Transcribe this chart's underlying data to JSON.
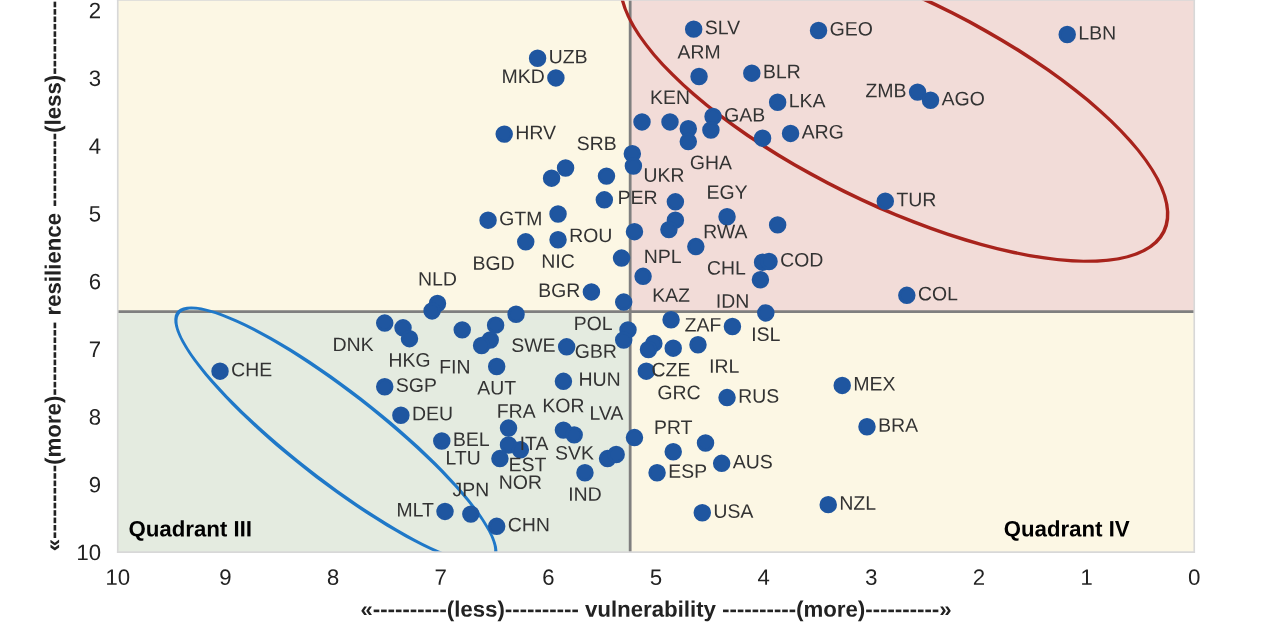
{
  "chart_data": {
    "type": "scatter",
    "xlabel": "«----------(less)---------- vulnerability ----------(more)----------»",
    "ylabel": "«----------(more)---------- resilience ----------(less)----------",
    "xlim": [
      10,
      0
    ],
    "xticks": [
      10,
      9,
      8,
      7,
      6,
      5,
      4,
      3,
      2,
      1,
      0
    ],
    "ylim": [
      10,
      1.85
    ],
    "yticks": [
      2,
      3,
      4,
      5,
      6,
      7,
      8,
      9,
      10
    ],
    "grid": false,
    "marker": "circle",
    "ref_lines": [
      {
        "axis": "x",
        "value": 5.24,
        "color": "#7f7f7f"
      },
      {
        "axis": "y",
        "value": 6.45,
        "color": "#7f7f7f"
      }
    ],
    "series": [
      {
        "color": "#1f56a0",
        "x": [
          6.1,
          5.93,
          6.41,
          5.84,
          5.97,
          5.46,
          5.48,
          6.56,
          5.91,
          5.91,
          6.21,
          5.32,
          5.6,
          5.2,
          5.13,
          4.87,
          5.22,
          5.21,
          4.65,
          3.49,
          1.18,
          4.6,
          4.11,
          2.57,
          2.45,
          3.87,
          4.47,
          3.75,
          4.01,
          4.49,
          4.7,
          4.7,
          4.82,
          4.82,
          4.88,
          4.34,
          4.63,
          3.87,
          4.01,
          3.95,
          4.03,
          5.12,
          5.3,
          2.67,
          3.98,
          4.86,
          5.26,
          4.29,
          5.3,
          5.02,
          5.07,
          4.84,
          4.61,
          5.09,
          5.83,
          4.34,
          3.27,
          3.04,
          5.2,
          5.86,
          5.76,
          4.39,
          4.54,
          4.84,
          4.99,
          4.57,
          3.4,
          5.45,
          5.37,
          5.66,
          2.87,
          7.03,
          7.08,
          7.52,
          7.35,
          7.29,
          6.8,
          6.3,
          6.49,
          6.54,
          6.62,
          6.48,
          5.86,
          9.05,
          7.52,
          7.37,
          6.99,
          6.37,
          6.37,
          6.26,
          6.45,
          6.96,
          6.72,
          6.48
        ],
        "values": [
          2.71,
          3.0,
          3.83,
          4.33,
          4.48,
          4.45,
          4.8,
          5.1,
          5.01,
          5.39,
          5.42,
          5.66,
          6.16,
          5.27,
          3.65,
          3.65,
          4.12,
          4.3,
          2.28,
          2.3,
          2.36,
          2.98,
          2.93,
          3.21,
          3.33,
          3.36,
          3.57,
          3.82,
          3.89,
          3.77,
          3.75,
          3.94,
          4.83,
          5.1,
          5.24,
          5.05,
          5.49,
          5.17,
          5.72,
          5.71,
          5.98,
          5.93,
          6.31,
          6.21,
          6.47,
          6.57,
          6.72,
          6.67,
          6.87,
          6.92,
          7.01,
          6.99,
          6.94,
          7.33,
          6.97,
          7.72,
          7.54,
          8.15,
          8.31,
          8.2,
          8.27,
          8.69,
          8.39,
          8.52,
          8.83,
          9.42,
          9.3,
          8.62,
          8.56,
          8.83,
          4.82,
          6.33,
          6.44,
          6.62,
          6.69,
          6.85,
          6.72,
          6.49,
          6.65,
          6.87,
          6.95,
          7.26,
          7.48,
          7.33,
          7.56,
          7.98,
          8.36,
          8.17,
          8.42,
          8.49,
          8.62,
          9.4,
          9.44,
          9.62
        ]
      }
    ],
    "annotations": [
      "Quadrant III",
      "Quadrant IV",
      {
        "text": "UZB",
        "x": 6.1,
        "y": 2.71
      },
      {
        "text": "MKD",
        "x": 5.93,
        "y": 3.0
      },
      {
        "text": "HRV",
        "x": 6.41,
        "y": 3.83
      },
      {
        "text": "SRB",
        "x": 5.84,
        "y": 4.33
      },
      {
        "text": "PER",
        "x": 5.46,
        "y": 4.45
      },
      {
        "text": "GTM",
        "x": 6.56,
        "y": 5.1
      },
      {
        "text": "ROU",
        "x": 5.91,
        "y": 5.01
      },
      {
        "text": "NIC",
        "x": 5.91,
        "y": 5.39
      },
      {
        "text": "BGD",
        "x": 6.21,
        "y": 5.42
      },
      {
        "text": "NPL",
        "x": 5.32,
        "y": 5.66
      },
      {
        "text": "BGR",
        "x": 5.6,
        "y": 6.16
      },
      {
        "text": "KEN",
        "x": 4.87,
        "y": 3.65
      },
      {
        "text": "UKR",
        "x": 5.22,
        "y": 4.12
      },
      {
        "text": "SLV",
        "x": 4.65,
        "y": 2.28
      },
      {
        "text": "GEO",
        "x": 3.49,
        "y": 2.3
      },
      {
        "text": "LBN",
        "x": 1.18,
        "y": 2.36
      },
      {
        "text": "ARM",
        "x": 4.6,
        "y": 2.98
      },
      {
        "text": "BLR",
        "x": 4.11,
        "y": 2.93
      },
      {
        "text": "ZMB",
        "x": 2.57,
        "y": 3.21
      },
      {
        "text": "AGO",
        "x": 2.45,
        "y": 3.33
      },
      {
        "text": "LKA",
        "x": 3.87,
        "y": 3.36
      },
      {
        "text": "GAB",
        "x": 4.47,
        "y": 3.57
      },
      {
        "text": "ARG",
        "x": 3.75,
        "y": 3.82
      },
      {
        "text": "GHA",
        "x": 4.49,
        "y": 3.77
      },
      {
        "text": "RWA",
        "x": 4.82,
        "y": 4.83
      },
      {
        "text": "TUR",
        "x": 2.87,
        "y": 4.82
      },
      {
        "text": "EGY",
        "x": 4.34,
        "y": 5.05
      },
      {
        "text": "CHL",
        "x": 4.63,
        "y": 5.49
      },
      {
        "text": "COD",
        "x": 3.95,
        "y": 5.71
      },
      {
        "text": "IDN",
        "x": 4.03,
        "y": 5.98
      },
      {
        "text": "POL",
        "x": 5.3,
        "y": 6.31
      },
      {
        "text": "COL",
        "x": 2.67,
        "y": 6.21
      },
      {
        "text": "ISL",
        "x": 3.98,
        "y": 6.47
      },
      {
        "text": "KAZ",
        "x": 4.86,
        "y": 6.57
      },
      {
        "text": "GBR",
        "x": 5.26,
        "y": 6.72
      },
      {
        "text": "ZAF",
        "x": 4.29,
        "y": 6.67
      },
      {
        "text": "CZE",
        "x": 5.3,
        "y": 6.87
      },
      {
        "text": "IRL",
        "x": 4.61,
        "y": 6.94
      },
      {
        "text": "HUN",
        "x": 5.07,
        "y": 7.01
      },
      {
        "text": "GRC",
        "x": 5.09,
        "y": 7.33
      },
      {
        "text": "SWE",
        "x": 5.83,
        "y": 6.97
      },
      {
        "text": "RUS",
        "x": 4.34,
        "y": 7.72
      },
      {
        "text": "MEX",
        "x": 3.27,
        "y": 7.54
      },
      {
        "text": "BRA",
        "x": 3.04,
        "y": 8.15
      },
      {
        "text": "LVA",
        "x": 5.2,
        "y": 8.31
      },
      {
        "text": "KOR",
        "x": 5.86,
        "y": 8.2
      },
      {
        "text": "EST",
        "x": 5.76,
        "y": 8.27
      },
      {
        "text": "AUS",
        "x": 4.39,
        "y": 8.69
      },
      {
        "text": "PRT",
        "x": 4.84,
        "y": 8.52
      },
      {
        "text": "ESP",
        "x": 4.99,
        "y": 8.83
      },
      {
        "text": "USA",
        "x": 4.57,
        "y": 9.42
      },
      {
        "text": "NZL",
        "x": 3.4,
        "y": 9.3
      },
      {
        "text": "SVK",
        "x": 5.37,
        "y": 8.56
      },
      {
        "text": "IND",
        "x": 5.66,
        "y": 8.83
      },
      {
        "text": "NLD",
        "x": 7.03,
        "y": 6.33
      },
      {
        "text": "DNK",
        "x": 7.52,
        "y": 6.62
      },
      {
        "text": "HKG",
        "x": 7.29,
        "y": 6.85
      },
      {
        "text": "FIN",
        "x": 6.62,
        "y": 6.95
      },
      {
        "text": "AUT",
        "x": 6.48,
        "y": 7.26
      },
      {
        "text": "FRA",
        "x": 5.86,
        "y": 7.48
      },
      {
        "text": "CHE",
        "x": 9.05,
        "y": 7.33
      },
      {
        "text": "SGP",
        "x": 7.52,
        "y": 7.56
      },
      {
        "text": "DEU",
        "x": 7.37,
        "y": 7.98
      },
      {
        "text": "BEL",
        "x": 6.99,
        "y": 8.36
      },
      {
        "text": "LTU",
        "x": 6.37,
        "y": 8.17
      },
      {
        "text": "ITA",
        "x": 6.37,
        "y": 8.42
      },
      {
        "text": "NOR",
        "x": 6.26,
        "y": 8.49
      },
      {
        "text": "MLT",
        "x": 6.96,
        "y": 9.4
      },
      {
        "text": "JPN",
        "x": 6.72,
        "y": 9.44
      },
      {
        "text": "CHN",
        "x": 6.48,
        "y": 9.62
      }
    ]
  }
}
